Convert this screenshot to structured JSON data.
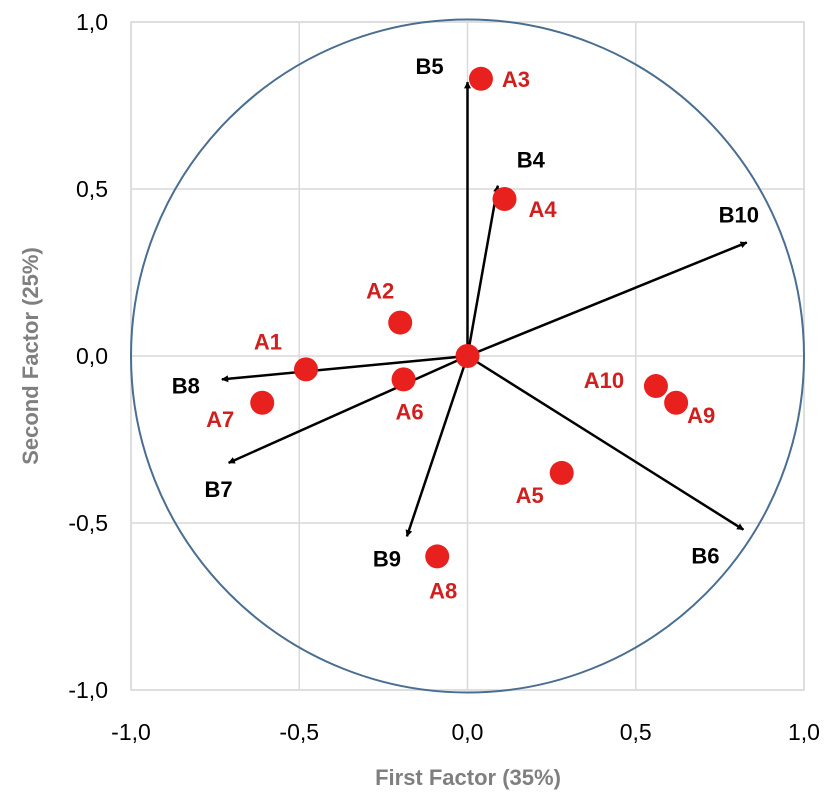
{
  "chart_data": {
    "type": "scatter",
    "title": "",
    "xlabel": "First Factor (35%)",
    "ylabel": "Second Factor (25%)",
    "xlim": [
      -1.0,
      1.0
    ],
    "ylim": [
      -1.0,
      1.0
    ],
    "x_ticks": [
      "-1,0",
      "-0,5",
      "0,0",
      "0,5",
      "1,0"
    ],
    "y_ticks": [
      "1,0",
      "0,5",
      "0,0",
      "-0,5",
      "-1,0"
    ],
    "grid": true,
    "correlation_circle": true,
    "colors": {
      "points": "#e8211f",
      "point_labels": "#d11f1f",
      "vectors": "#000000",
      "circle": "#4a6e91",
      "grid": "#d9d9d9"
    },
    "points": [
      {
        "label": "A1",
        "x": -0.48,
        "y": -0.04
      },
      {
        "label": "A2",
        "x": -0.2,
        "y": 0.1
      },
      {
        "label": "A3",
        "x": 0.04,
        "y": 0.83
      },
      {
        "label": "A4",
        "x": 0.11,
        "y": 0.47
      },
      {
        "label": "A5",
        "x": 0.28,
        "y": -0.35
      },
      {
        "label": "A6",
        "x": -0.19,
        "y": -0.07
      },
      {
        "label": "A7",
        "x": -0.61,
        "y": -0.14
      },
      {
        "label": "A8",
        "x": -0.09,
        "y": -0.6
      },
      {
        "label": "A9",
        "x": 0.62,
        "y": -0.14
      },
      {
        "label": "A10",
        "x": 0.56,
        "y": -0.09
      },
      {
        "label": "",
        "x": 0.0,
        "y": 0.0
      }
    ],
    "vectors": [
      {
        "label": "B4",
        "x": 0.09,
        "y": 0.51
      },
      {
        "label": "B5",
        "x": 0.0,
        "y": 0.82
      },
      {
        "label": "B6",
        "x": 0.82,
        "y": -0.52
      },
      {
        "label": "B7",
        "x": -0.71,
        "y": -0.32
      },
      {
        "label": "B8",
        "x": -0.73,
        "y": -0.07
      },
      {
        "label": "B9",
        "x": -0.18,
        "y": -0.54
      },
      {
        "label": "B10",
        "x": 0.83,
        "y": 0.34
      }
    ]
  }
}
